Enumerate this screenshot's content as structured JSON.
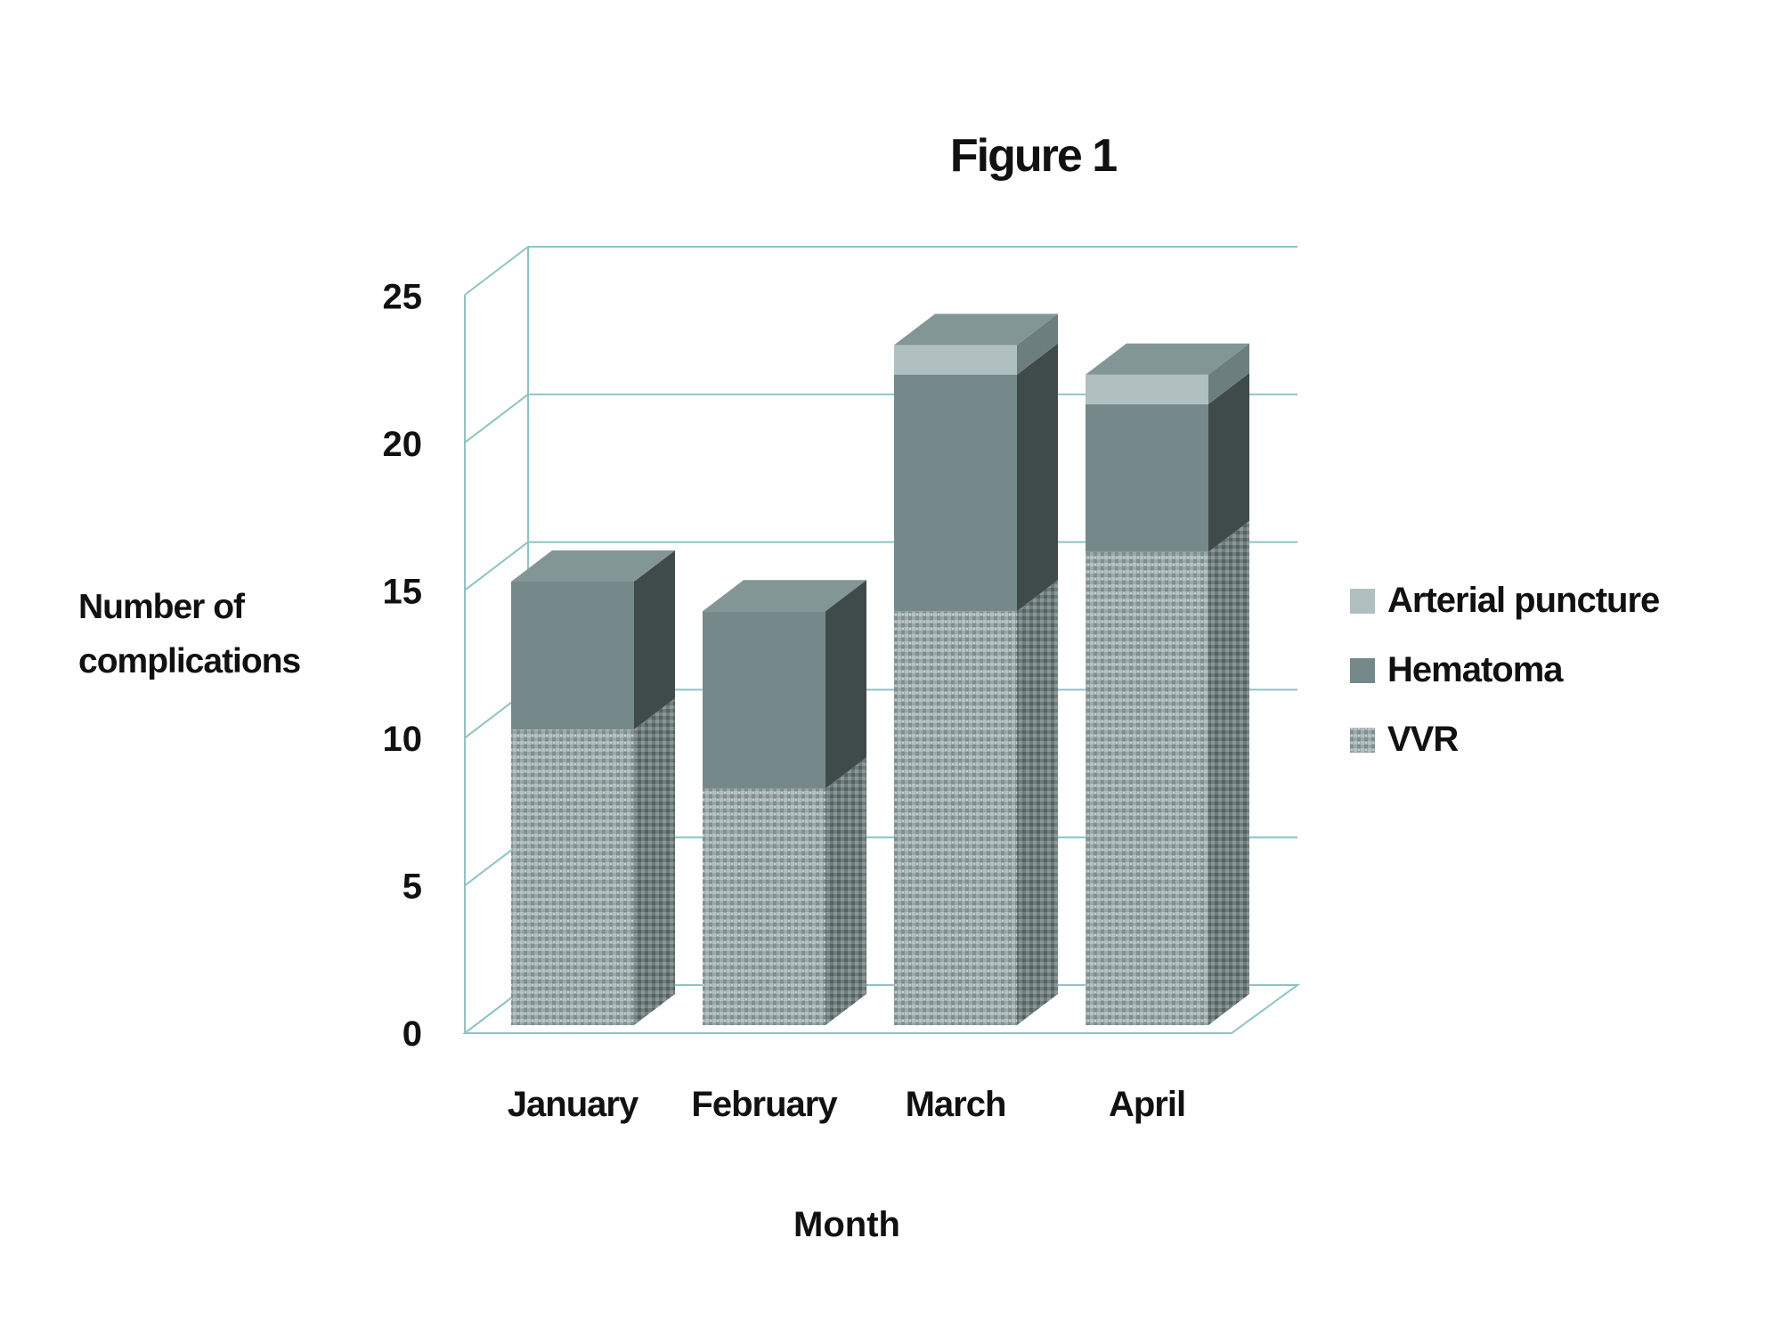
{
  "chart_data": {
    "type": "bar",
    "stacked": true,
    "three_d": true,
    "title": "Figure 1",
    "xlabel": "Month",
    "ylabel": [
      "Number of",
      "complications"
    ],
    "ylim": [
      0,
      25
    ],
    "yticks": [
      0,
      5,
      10,
      15,
      20,
      25
    ],
    "grid": true,
    "legend_position": "right",
    "categories": [
      "January",
      "February",
      "March",
      "April"
    ],
    "series": [
      {
        "name": "VVR",
        "values": [
          10,
          8,
          14,
          16
        ],
        "color": "#9aa8a8",
        "pattern": "textured"
      },
      {
        "name": "Hematoma",
        "values": [
          5,
          6,
          8,
          5
        ],
        "color": "#76898a"
      },
      {
        "name": "Arterial puncture",
        "values": [
          0,
          0,
          1,
          1
        ],
        "color": "#b0c0c0"
      }
    ],
    "legend_order": [
      "Arterial puncture",
      "Hematoma",
      "VVR"
    ],
    "gridline_color": "#8cc4c4"
  }
}
